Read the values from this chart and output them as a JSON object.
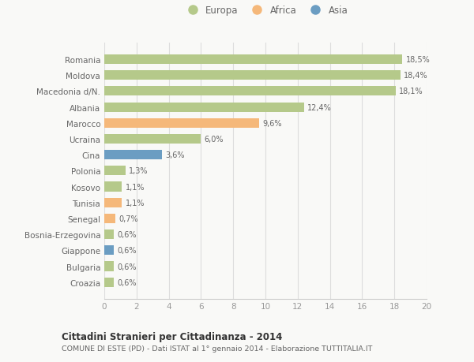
{
  "countries": [
    "Romania",
    "Moldova",
    "Macedonia d/N.",
    "Albania",
    "Marocco",
    "Ucraina",
    "Cina",
    "Polonia",
    "Kosovo",
    "Tunisia",
    "Senegal",
    "Bosnia-Erzegovina",
    "Giappone",
    "Bulgaria",
    "Croazia"
  ],
  "values": [
    18.5,
    18.4,
    18.1,
    12.4,
    9.6,
    6.0,
    3.6,
    1.3,
    1.1,
    1.1,
    0.7,
    0.6,
    0.6,
    0.6,
    0.6
  ],
  "labels": [
    "18,5%",
    "18,4%",
    "18,1%",
    "12,4%",
    "9,6%",
    "6,0%",
    "3,6%",
    "1,3%",
    "1,1%",
    "1,1%",
    "0,7%",
    "0,6%",
    "0,6%",
    "0,6%",
    "0,6%"
  ],
  "continents": [
    "Europa",
    "Europa",
    "Europa",
    "Europa",
    "Africa",
    "Europa",
    "Asia",
    "Europa",
    "Europa",
    "Africa",
    "Africa",
    "Europa",
    "Asia",
    "Europa",
    "Europa"
  ],
  "colors": {
    "Europa": "#b5c98a",
    "Africa": "#f5b87a",
    "Asia": "#6b9dc2"
  },
  "legend": [
    "Europa",
    "Africa",
    "Asia"
  ],
  "legend_colors": [
    "#b5c98a",
    "#f5b87a",
    "#6b9dc2"
  ],
  "xlim": [
    0,
    20
  ],
  "xticks": [
    0,
    2,
    4,
    6,
    8,
    10,
    12,
    14,
    16,
    18,
    20
  ],
  "title": "Cittadini Stranieri per Cittadinanza - 2014",
  "subtitle": "COMUNE DI ESTE (PD) - Dati ISTAT al 1° gennaio 2014 - Elaborazione TUTTITALIA.IT",
  "bg_color": "#f9f9f7",
  "bar_alpha": 1.0
}
